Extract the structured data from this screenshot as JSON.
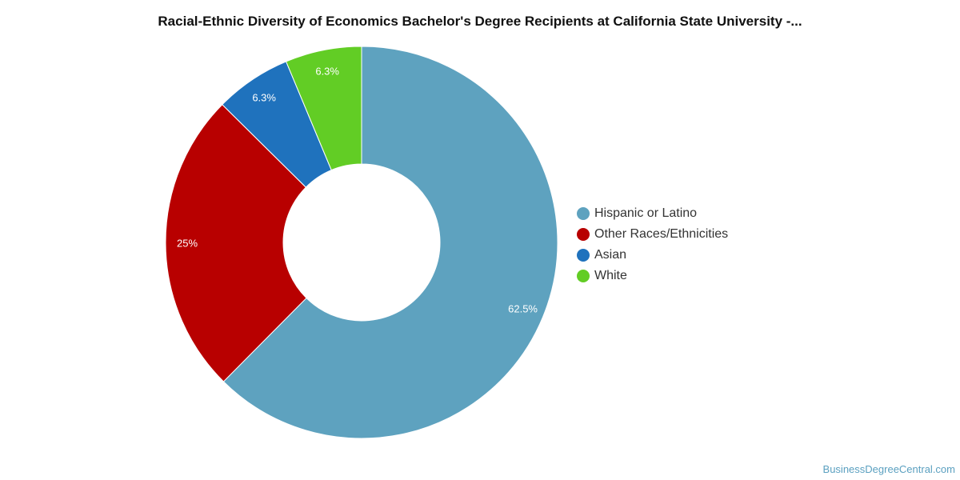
{
  "chart_data": {
    "type": "pie",
    "title": "Racial-Ethnic Diversity of Economics Bachelor's Degree Recipients at California State University -...",
    "categories": [
      "Hispanic or Latino",
      "Other Races/Ethnicities",
      "Asian",
      "White"
    ],
    "values": [
      62.5,
      25,
      6.3,
      6.3
    ],
    "labels": [
      "62.5%",
      "25%",
      "6.3%",
      "6.3%"
    ],
    "colors": [
      "#5ea2bf",
      "#b80000",
      "#1f72bd",
      "#62cd25"
    ],
    "donut": true,
    "legend_position": "right"
  },
  "credit": "BusinessDegreeCentral.com"
}
